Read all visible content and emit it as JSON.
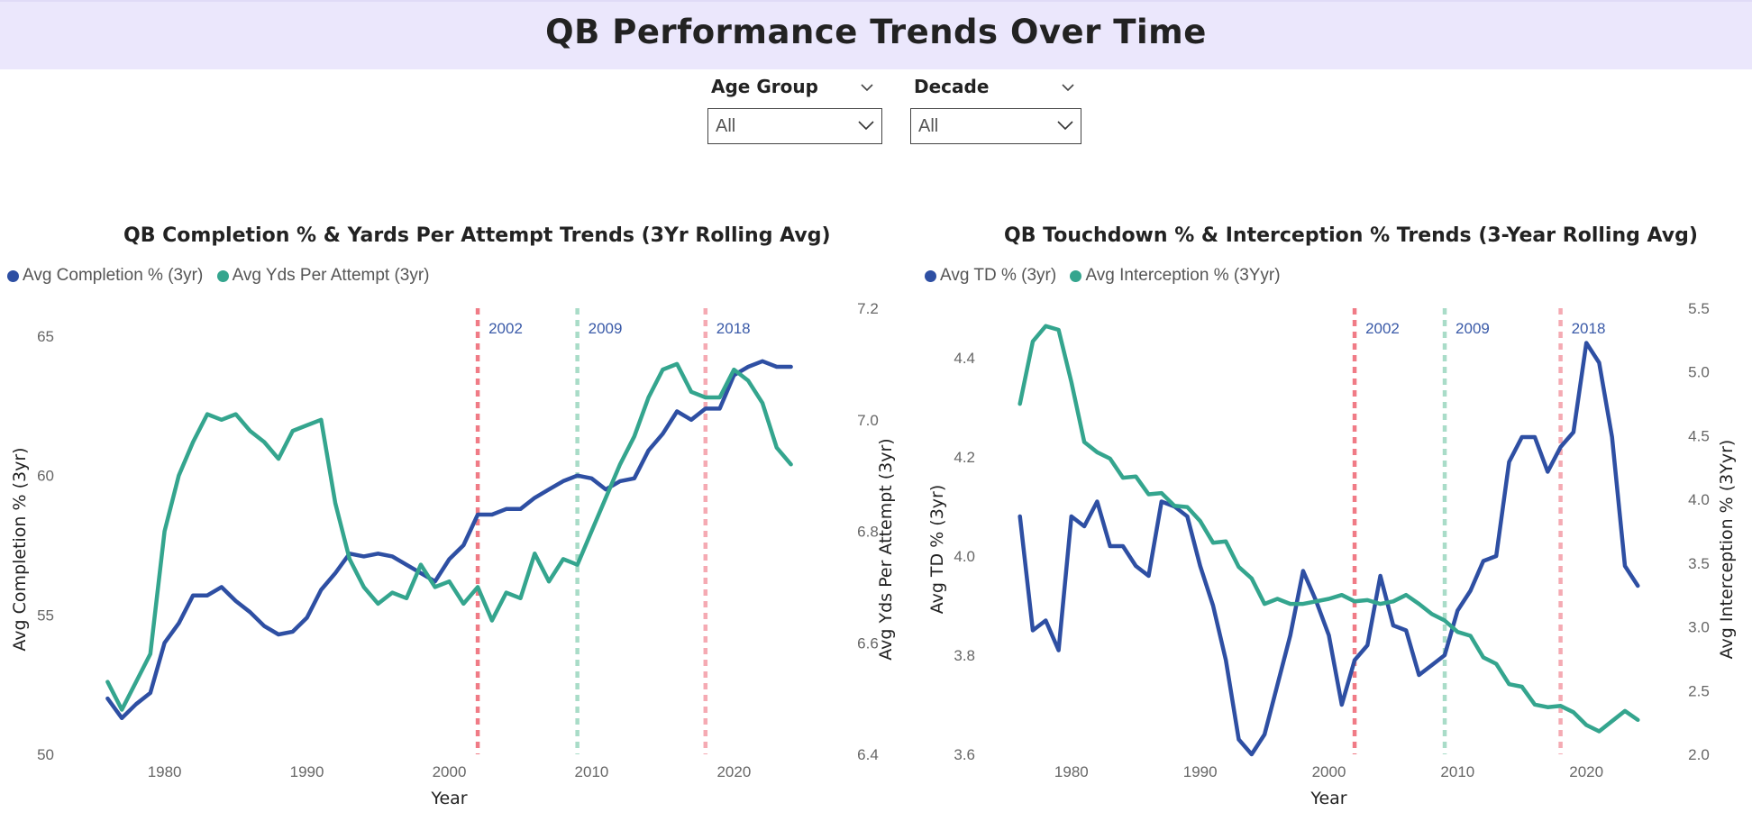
{
  "header": {
    "title": "QB Performance Trends Over Time"
  },
  "filters": [
    {
      "label": "Age Group",
      "value": "All"
    },
    {
      "label": "Decade",
      "value": "All"
    }
  ],
  "colors": {
    "blue": "#2e4fa3",
    "teal": "#34a58e",
    "red_line": "#f07b86",
    "green_line": "#a9dcc8",
    "header_bg": "#ebe7fc"
  },
  "chart_data": [
    {
      "type": "line",
      "title": "QB Completion % & Yards Per Attempt Trends (3Yr Rolling Avg)",
      "xlabel": "Year",
      "ylabel": "Avg Completion % (3yr)",
      "y2label": "Avg Yds Per Attempt (3yr)",
      "xlim": [
        1974.2,
        2025.8
      ],
      "ylim": [
        50,
        65
      ],
      "y2lim": [
        6.4,
        7.2
      ],
      "xticks": [
        1980,
        1990,
        2000,
        2010,
        2020
      ],
      "yticks": [
        50,
        55,
        60,
        65
      ],
      "y2ticks": [
        "6.4",
        "6.6",
        "6.8",
        "7.0",
        "7.2"
      ],
      "y2tick_values": [
        6.4,
        6.6,
        6.8,
        7.0,
        7.2
      ],
      "grid": false,
      "legend": "top-left",
      "x": [
        1976,
        1977,
        1978,
        1979,
        1980,
        1981,
        1982,
        1983,
        1984,
        1985,
        1986,
        1987,
        1988,
        1989,
        1990,
        1991,
        1992,
        1993,
        1994,
        1995,
        1996,
        1997,
        1998,
        1999,
        2000,
        2001,
        2002,
        2003,
        2004,
        2005,
        2006,
        2007,
        2008,
        2009,
        2010,
        2011,
        2012,
        2013,
        2014,
        2015,
        2016,
        2017,
        2018,
        2019,
        2020,
        2021,
        2022,
        2023,
        2024
      ],
      "series": [
        {
          "name": "Avg Completion % (3yr)",
          "axis": "left",
          "color": "#2e4fa3",
          "values": [
            52.0,
            51.3,
            51.8,
            52.2,
            54.0,
            54.7,
            55.7,
            55.7,
            56.0,
            55.5,
            55.1,
            54.6,
            54.3,
            54.4,
            54.9,
            55.9,
            56.5,
            57.2,
            57.1,
            57.2,
            57.1,
            56.8,
            56.5,
            56.2,
            57.0,
            57.5,
            58.6,
            58.6,
            58.8,
            58.8,
            59.2,
            59.5,
            59.8,
            60.0,
            59.9,
            59.5,
            59.8,
            59.9,
            60.9,
            61.5,
            62.3,
            62.0,
            62.4,
            62.4,
            63.6,
            63.9,
            64.1,
            63.9,
            63.9
          ]
        },
        {
          "name": "Avg Yds Per Attempt (3yr)",
          "axis": "right",
          "color": "#34a58e",
          "values": [
            6.53,
            6.48,
            6.53,
            6.58,
            6.8,
            6.9,
            6.96,
            7.01,
            7.0,
            7.01,
            6.98,
            6.96,
            6.93,
            6.98,
            6.99,
            7.0,
            6.85,
            6.75,
            6.7,
            6.67,
            6.69,
            6.68,
            6.74,
            6.7,
            6.71,
            6.67,
            6.7,
            6.64,
            6.69,
            6.68,
            6.76,
            6.71,
            6.75,
            6.74,
            6.8,
            6.86,
            6.92,
            6.97,
            7.04,
            7.09,
            7.1,
            7.05,
            7.04,
            7.04,
            7.09,
            7.07,
            7.03,
            6.95,
            6.92
          ]
        }
      ],
      "annotations": [
        {
          "x": 2002,
          "label": "2002",
          "color": "#f07b86"
        },
        {
          "x": 2009,
          "label": "2009",
          "color": "#a9dcc8"
        },
        {
          "x": 2018,
          "label": "2018",
          "color": "#f5aab3"
        }
      ]
    },
    {
      "type": "line",
      "title": "QB Touchdown % & Interception % Trends (3-Year Rolling Avg)",
      "xlabel": "Year",
      "ylabel": "Avg TD % (3yr)",
      "y2label": "Avg Interception % (3Yyr)",
      "xlim": [
        1974.2,
        2025.8
      ],
      "ylim": [
        3.6,
        4.5
      ],
      "y2lim": [
        2.0,
        5.5
      ],
      "xticks": [
        1980,
        1990,
        2000,
        2010,
        2020
      ],
      "yticks": [
        "3.6",
        "3.8",
        "4.0",
        "4.2",
        "4.4"
      ],
      "ytick_values": [
        3.6,
        3.8,
        4.0,
        4.2,
        4.4
      ],
      "y2ticks": [
        "2.0",
        "2.5",
        "3.0",
        "3.5",
        "4.0",
        "4.5",
        "5.0",
        "5.5"
      ],
      "y2tick_values": [
        2.0,
        2.5,
        3.0,
        3.5,
        4.0,
        4.5,
        5.0,
        5.5
      ],
      "grid": false,
      "legend": "top-left",
      "x": [
        1976,
        1977,
        1978,
        1979,
        1980,
        1981,
        1982,
        1983,
        1984,
        1985,
        1986,
        1987,
        1988,
        1989,
        1990,
        1991,
        1992,
        1993,
        1994,
        1995,
        1996,
        1997,
        1998,
        1999,
        2000,
        2001,
        2002,
        2003,
        2004,
        2005,
        2006,
        2007,
        2008,
        2009,
        2010,
        2011,
        2012,
        2013,
        2014,
        2015,
        2016,
        2017,
        2018,
        2019,
        2020,
        2021,
        2022,
        2023,
        2024
      ],
      "series": [
        {
          "name": "Avg TD % (3yr)",
          "axis": "left",
          "color": "#2e4fa3",
          "values": [
            4.08,
            3.85,
            3.87,
            3.81,
            4.08,
            4.06,
            4.11,
            4.02,
            4.02,
            3.98,
            3.96,
            4.11,
            4.1,
            4.08,
            3.98,
            3.9,
            3.79,
            3.63,
            3.6,
            3.64,
            3.74,
            3.84,
            3.97,
            3.91,
            3.84,
            3.7,
            3.79,
            3.82,
            3.96,
            3.86,
            3.85,
            3.76,
            3.78,
            3.8,
            3.89,
            3.93,
            3.99,
            4.0,
            4.19,
            4.24,
            4.24,
            4.17,
            4.22,
            4.25,
            4.43,
            4.39,
            4.24,
            3.98,
            3.94
          ]
        },
        {
          "name": "Avg Interception % (3Yyr)",
          "axis": "right",
          "color": "#34a58e",
          "values": [
            4.75,
            5.24,
            5.36,
            5.33,
            4.92,
            4.45,
            4.37,
            4.32,
            4.17,
            4.18,
            4.04,
            4.05,
            3.95,
            3.94,
            3.83,
            3.66,
            3.67,
            3.47,
            3.38,
            3.18,
            3.22,
            3.18,
            3.18,
            3.2,
            3.22,
            3.25,
            3.2,
            3.21,
            3.18,
            3.2,
            3.25,
            3.18,
            3.1,
            3.05,
            2.96,
            2.93,
            2.76,
            2.71,
            2.55,
            2.53,
            2.39,
            2.37,
            2.38,
            2.33,
            2.23,
            2.18,
            2.26,
            2.34,
            2.27
          ]
        }
      ],
      "annotations": [
        {
          "x": 2002,
          "label": "2002",
          "color": "#f07b86"
        },
        {
          "x": 2009,
          "label": "2009",
          "color": "#a9dcc8"
        },
        {
          "x": 2018,
          "label": "2018",
          "color": "#f5aab3"
        }
      ]
    }
  ]
}
